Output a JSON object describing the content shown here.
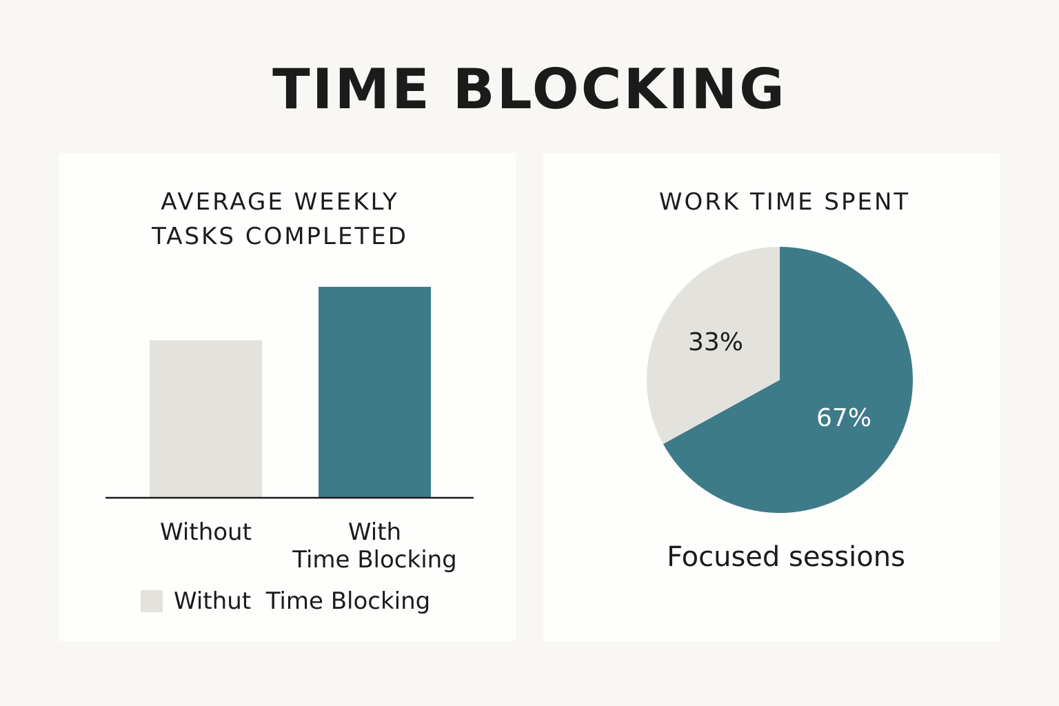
{
  "page": {
    "title": "TIME BLOCKING"
  },
  "colors": {
    "background": "#f8f7f3",
    "panel": "#fefefc",
    "accent": "#3e7b89",
    "neutral": "#e3e2dd",
    "text": "#1b1b1b"
  },
  "chart_data": [
    {
      "type": "bar",
      "title_lines": [
        "AVERAGE WEEKLY",
        "TASKS COMPLETED"
      ],
      "categories": [
        {
          "lines": [
            "Without"
          ]
        },
        {
          "lines": [
            "With",
            "Time Blocking"
          ]
        }
      ],
      "values": [
        56,
        75
      ],
      "value_note": "no y-axis or data labels shown; values estimated on a 0-100 relative scale",
      "ylim": [
        0,
        100
      ],
      "bar_colors": [
        "#e3e2dd",
        "#3e7b89"
      ],
      "grid": false,
      "legend": {
        "placement": "bottom-left",
        "entries": [
          {
            "label": "Withut  Time Blocking",
            "color": "#e3e2dd"
          }
        ]
      }
    },
    {
      "type": "pie",
      "title": "WORK TIME SPENT",
      "slices": [
        {
          "label": "67%",
          "value": 67,
          "color": "#3e7b89",
          "label_color": "#ffffff"
        },
        {
          "label": "33%",
          "value": 33,
          "color": "#e3e2dd",
          "label_color": "#1b1b1b"
        }
      ],
      "caption": "Focused sessions"
    }
  ]
}
